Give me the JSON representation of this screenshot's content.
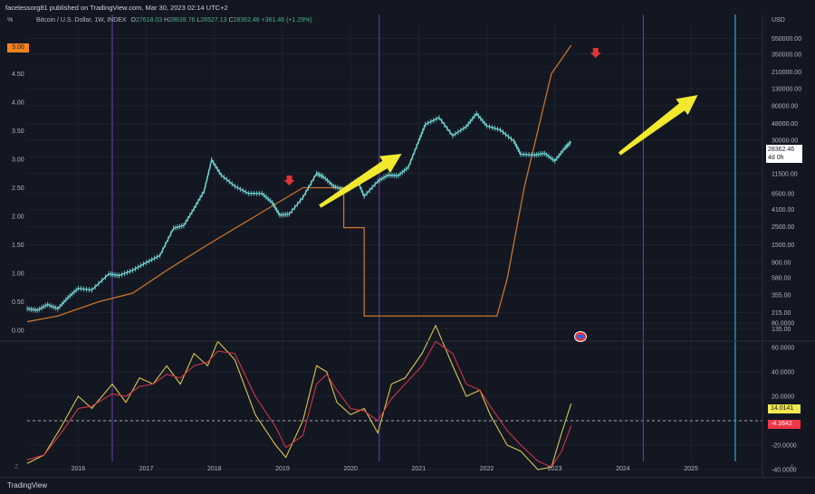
{
  "header": {
    "publisher": "facelessorg81 published on TradingView.com, Mar 30, 2023 02:14 UTC+2",
    "left_axis_label": "%",
    "right_axis_label": "USD"
  },
  "legend": {
    "symbol": "Bitcoin / U.S. Dollar, 1W, INDEX",
    "o_label": "O",
    "o": "27618.03",
    "h_label": "H",
    "h": "28639.76",
    "l_label": "L",
    "l": "26527.13",
    "c_label": "C",
    "c": "28362.46",
    "change": "+361.46 (+1.29%)"
  },
  "footer": {
    "brand": "TradingView",
    "z_label": "Z",
    "a_label": "A"
  },
  "colors": {
    "background": "#131722",
    "grid": "#1e222d",
    "price": "#6fd3d0",
    "step_line": "#c8742a",
    "osc_fast": "#d8c64a",
    "osc_slow": "#d0334a",
    "arrow_yellow": "#f2e92e",
    "arrow_red": "#e0343a",
    "vline_purple": "#5b3a9c",
    "vline_blue": "#2ab0c6",
    "left_badge": "#f5841f",
    "price_badge_bg": "#ffffff",
    "osc_badge_yellow": "#f2e94e",
    "osc_badge_red": "#f23645"
  },
  "annotations": {
    "price_badge_price": "28362.46",
    "price_badge_time": "4d 0h"
  },
  "chart_data": [
    {
      "type": "line",
      "panel": "price",
      "title": "Bitcoin / U.S. Dollar, 1W, INDEX",
      "y_scale": "log",
      "right_axis_ticks": [
        550000,
        350000,
        210000,
        130000,
        80000,
        48000,
        30000,
        18500,
        11500,
        6500,
        4100,
        2500,
        1500,
        900,
        580,
        355,
        215,
        135
      ],
      "right_axis_labels": [
        "550000.00",
        "350000.00",
        "210000.00",
        "130000.00",
        "80000.00",
        "48000.00",
        "30000.00",
        "18500.00",
        "11500.00",
        "6500.00",
        "4100.00",
        "2500.00",
        "1500.00",
        "900.00",
        "580.00",
        "355.00",
        "215.00",
        "135.00"
      ],
      "left_axis_ticks": [
        4.5,
        4.0,
        3.5,
        3.0,
        2.5,
        2.0,
        1.5,
        1.0,
        0.5,
        0.0
      ],
      "left_axis_labels": [
        "4.50",
        "4.00",
        "3.50",
        "3.00",
        "2.50",
        "2.00",
        "1.50",
        "1.00",
        "0.50",
        "0.00"
      ],
      "left_badge_label": "5.00",
      "x_ticks": [
        2016,
        2017,
        2018,
        2019,
        2020,
        2021,
        2022,
        2023,
        2024,
        2025
      ],
      "series": [
        {
          "role": "price_usd",
          "x": [
            2015.25,
            2015.4,
            2015.55,
            2015.7,
            2015.85,
            2016.0,
            2016.2,
            2016.45,
            2016.6,
            2016.8,
            2017.0,
            2017.2,
            2017.4,
            2017.55,
            2017.7,
            2017.85,
            2017.96,
            2018.1,
            2018.3,
            2018.5,
            2018.7,
            2018.85,
            2018.96,
            2019.1,
            2019.3,
            2019.5,
            2019.6,
            2019.75,
            2019.9,
            2020.1,
            2020.2,
            2020.4,
            2020.55,
            2020.7,
            2020.85,
            2021.0,
            2021.1,
            2021.3,
            2021.5,
            2021.7,
            2021.85,
            2022.0,
            2022.2,
            2022.4,
            2022.5,
            2022.7,
            2022.85,
            2023.0,
            2023.15,
            2023.24
          ],
          "values": [
            240,
            230,
            270,
            240,
            330,
            430,
            410,
            650,
            620,
            720,
            900,
            1100,
            2400,
            2600,
            4200,
            7000,
            17000,
            11000,
            8000,
            6500,
            6500,
            5000,
            3500,
            3600,
            5800,
            11500,
            10500,
            8000,
            7200,
            9500,
            6000,
            9200,
            11000,
            10800,
            13800,
            29000,
            47000,
            57000,
            34000,
            44000,
            64000,
            45000,
            40000,
            29000,
            20000,
            19500,
            20500,
            16500,
            24000,
            28362
          ]
        },
        {
          "role": "step_line_left_axis",
          "x": [
            2015.25,
            2015.7,
            2016.3,
            2016.8,
            2017.3,
            2017.9,
            2018.6,
            2019.3,
            2019.9,
            2020.15,
            2020.2,
            2022.15,
            2022.3,
            2022.55,
            2022.95,
            2023.24
          ],
          "values": [
            0.15,
            0.25,
            0.5,
            0.65,
            1.05,
            1.5,
            2.0,
            2.5,
            1.8,
            1.8,
            0.25,
            0.25,
            0.9,
            2.5,
            4.5,
            5.0
          ]
        }
      ]
    },
    {
      "type": "line",
      "panel": "oscillator",
      "y_axis_ticks": [
        80,
        60,
        40,
        20,
        0,
        -20,
        -40
      ],
      "y_axis_labels": [
        "80.0000",
        "60.0000",
        "40.0000",
        "20.0000",
        "",
        "-20.0000",
        "-40.0000"
      ],
      "reference_line": 0,
      "last_values": [
        "14.0141",
        "-4.1642"
      ],
      "series": [
        {
          "role": "fast",
          "x": [
            2015.25,
            2015.5,
            2015.75,
            2016.0,
            2016.2,
            2016.5,
            2016.7,
            2016.9,
            2017.1,
            2017.3,
            2017.5,
            2017.7,
            2017.9,
            2018.05,
            2018.3,
            2018.6,
            2018.9,
            2019.05,
            2019.3,
            2019.5,
            2019.65,
            2019.8,
            2020.0,
            2020.2,
            2020.4,
            2020.6,
            2020.8,
            2021.05,
            2021.25,
            2021.5,
            2021.7,
            2021.9,
            2022.05,
            2022.3,
            2022.5,
            2022.75,
            2022.95,
            2023.1,
            2023.24
          ],
          "values": [
            -35,
            -28,
            -5,
            20,
            10,
            30,
            15,
            35,
            30,
            45,
            30,
            55,
            45,
            65,
            50,
            5,
            -20,
            -30,
            0,
            45,
            40,
            15,
            5,
            10,
            -10,
            30,
            35,
            55,
            78,
            45,
            20,
            25,
            5,
            -20,
            -25,
            -40,
            -38,
            -10,
            14
          ]
        },
        {
          "role": "slow",
          "x": [
            2015.25,
            2015.5,
            2015.75,
            2016.0,
            2016.2,
            2016.5,
            2016.7,
            2016.9,
            2017.1,
            2017.3,
            2017.5,
            2017.7,
            2017.9,
            2018.05,
            2018.3,
            2018.6,
            2018.9,
            2019.05,
            2019.3,
            2019.5,
            2019.65,
            2019.8,
            2020.0,
            2020.2,
            2020.4,
            2020.6,
            2020.8,
            2021.05,
            2021.25,
            2021.5,
            2021.7,
            2021.9,
            2022.05,
            2022.3,
            2022.5,
            2022.75,
            2022.95,
            2023.1,
            2023.24
          ],
          "values": [
            -32,
            -28,
            -10,
            10,
            12,
            22,
            20,
            28,
            30,
            38,
            35,
            45,
            48,
            57,
            55,
            20,
            -5,
            -22,
            -12,
            30,
            38,
            25,
            10,
            8,
            0,
            18,
            30,
            45,
            65,
            55,
            30,
            25,
            12,
            -8,
            -20,
            -33,
            -38,
            -25,
            -4
          ]
        }
      ]
    }
  ]
}
